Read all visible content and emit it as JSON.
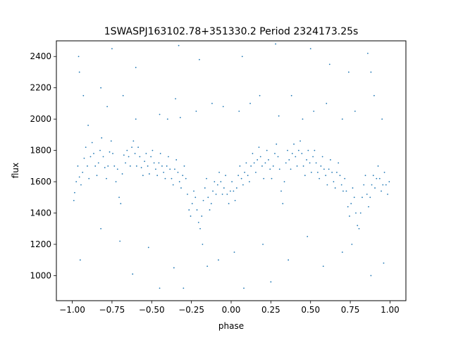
{
  "chart_data": {
    "type": "scatter",
    "title": "1SWASPJ163102.78+351330.2 Period 2324173.25s",
    "xlabel": "phase",
    "ylabel": "flux",
    "xlim": [
      -1.1,
      1.1
    ],
    "ylim": [
      840,
      2500
    ],
    "xticks": [
      -1.0,
      -0.75,
      -0.5,
      -0.25,
      0.0,
      0.25,
      0.5,
      0.75,
      1.0
    ],
    "xtick_labels": [
      "−1.00",
      "−0.75",
      "−0.50",
      "−0.25",
      "0.00",
      "0.25",
      "0.50",
      "0.75",
      "1.00"
    ],
    "yticks": [
      1000,
      1200,
      1400,
      1600,
      1800,
      2000,
      2200,
      2400
    ],
    "ytick_labels": [
      "1000",
      "1200",
      "1400",
      "1600",
      "1800",
      "2000",
      "2200",
      "2400"
    ],
    "grid": false,
    "series": [
      {
        "color": "#1f77b4",
        "marker_size": 0.9,
        "points": [
          [
            -0.99,
            1480
          ],
          [
            -0.985,
            1530
          ],
          [
            -0.975,
            1600
          ],
          [
            -0.965,
            1700
          ],
          [
            -0.955,
            1630
          ],
          [
            -0.945,
            1580
          ],
          [
            -0.935,
            1660
          ],
          [
            -0.925,
            1750
          ],
          [
            -0.915,
            1820
          ],
          [
            -0.905,
            1700
          ],
          [
            -0.895,
            1620
          ],
          [
            -0.885,
            1760
          ],
          [
            -0.875,
            1850
          ],
          [
            -0.865,
            1780
          ],
          [
            -0.855,
            1700
          ],
          [
            -0.845,
            1640
          ],
          [
            -0.835,
            1720
          ],
          [
            -0.825,
            1800
          ],
          [
            -0.815,
            1880
          ],
          [
            -0.805,
            1760
          ],
          [
            -0.795,
            1690
          ],
          [
            -0.785,
            1620
          ],
          [
            -0.775,
            1700
          ],
          [
            -0.765,
            1790
          ],
          [
            -0.755,
            1860
          ],
          [
            -0.745,
            1780
          ],
          [
            -0.735,
            1700
          ],
          [
            -0.725,
            1600
          ],
          [
            -0.715,
            1680
          ],
          [
            -0.705,
            1500
          ],
          [
            -0.695,
            1460
          ],
          [
            -0.685,
            1650
          ],
          [
            -0.675,
            1770
          ],
          [
            -0.665,
            1720
          ],
          [
            -0.655,
            1800
          ],
          [
            -0.645,
            1760
          ],
          [
            -0.635,
            1700
          ],
          [
            -0.625,
            1820
          ],
          [
            -0.615,
            1860
          ],
          [
            -0.605,
            1780
          ],
          [
            -0.595,
            1700
          ],
          [
            -0.585,
            1820
          ],
          [
            -0.575,
            1760
          ],
          [
            -0.565,
            1690
          ],
          [
            -0.555,
            1640
          ],
          [
            -0.545,
            1730
          ],
          [
            -0.535,
            1780
          ],
          [
            -0.525,
            1700
          ],
          [
            -0.515,
            1650
          ],
          [
            -0.505,
            1760
          ],
          [
            -0.495,
            1800
          ],
          [
            -0.485,
            1720
          ],
          [
            -0.475,
            1680
          ],
          [
            -0.465,
            1640
          ],
          [
            -0.455,
            1720
          ],
          [
            -0.445,
            1780
          ],
          [
            -0.435,
            1700
          ],
          [
            -0.425,
            1660
          ],
          [
            -0.415,
            1620
          ],
          [
            -0.405,
            1700
          ],
          [
            -0.395,
            1760
          ],
          [
            -0.385,
            1680
          ],
          [
            -0.375,
            1620
          ],
          [
            -0.365,
            1580
          ],
          [
            -0.355,
            1680
          ],
          [
            -0.345,
            1740
          ],
          [
            -0.335,
            1660
          ],
          [
            -0.325,
            1600
          ],
          [
            -0.315,
            1560
          ],
          [
            -0.305,
            1640
          ],
          [
            -0.295,
            1700
          ],
          [
            -0.285,
            1620
          ],
          [
            -0.275,
            1520
          ],
          [
            -0.265,
            1420
          ],
          [
            -0.255,
            1380
          ],
          [
            -0.245,
            1460
          ],
          [
            -0.235,
            1540
          ],
          [
            -0.225,
            1500
          ],
          [
            -0.215,
            1420
          ],
          [
            -0.205,
            1340
          ],
          [
            -0.195,
            1300
          ],
          [
            -0.185,
            1380
          ],
          [
            -0.175,
            1480
          ],
          [
            -0.165,
            1560
          ],
          [
            -0.155,
            1620
          ],
          [
            -0.145,
            1500
          ],
          [
            -0.135,
            1420
          ],
          [
            -0.125,
            1460
          ],
          [
            -0.115,
            1540
          ],
          [
            -0.105,
            1600
          ],
          [
            -0.095,
            1520
          ],
          [
            -0.085,
            1580
          ],
          [
            -0.075,
            1660
          ],
          [
            -0.065,
            1600
          ],
          [
            -0.055,
            1520
          ],
          [
            -0.045,
            1560
          ],
          [
            -0.035,
            1640
          ],
          [
            -0.025,
            1520
          ],
          [
            -0.015,
            1460
          ],
          [
            -0.005,
            1540
          ],
          [
            0.005,
            1600
          ],
          [
            0.015,
            1540
          ],
          [
            0.025,
            1480
          ],
          [
            0.035,
            1560
          ],
          [
            0.045,
            1640
          ],
          [
            0.055,
            1700
          ],
          [
            0.065,
            1620
          ],
          [
            0.075,
            1580
          ],
          [
            0.085,
            1660
          ],
          [
            0.095,
            1720
          ],
          [
            0.105,
            1640
          ],
          [
            0.115,
            1600
          ],
          [
            0.125,
            1700
          ],
          [
            0.135,
            1780
          ],
          [
            0.145,
            1720
          ],
          [
            0.155,
            1660
          ],
          [
            0.165,
            1740
          ],
          [
            0.175,
            1820
          ],
          [
            0.185,
            1760
          ],
          [
            0.195,
            1700
          ],
          [
            0.205,
            1620
          ],
          [
            0.215,
            1720
          ],
          [
            0.225,
            1800
          ],
          [
            0.235,
            1740
          ],
          [
            0.245,
            1680
          ],
          [
            0.255,
            1620
          ],
          [
            0.265,
            1700
          ],
          [
            0.275,
            1780
          ],
          [
            0.285,
            1840
          ],
          [
            0.295,
            1760
          ],
          [
            0.305,
            1680
          ],
          [
            0.315,
            1540
          ],
          [
            0.325,
            1460
          ],
          [
            0.335,
            1600
          ],
          [
            0.345,
            1720
          ],
          [
            0.355,
            1800
          ],
          [
            0.365,
            1740
          ],
          [
            0.375,
            1680
          ],
          [
            0.385,
            1780
          ],
          [
            0.395,
            1840
          ],
          [
            0.405,
            1760
          ],
          [
            0.415,
            1700
          ],
          [
            0.425,
            1800
          ],
          [
            0.435,
            1860
          ],
          [
            0.445,
            1780
          ],
          [
            0.455,
            1700
          ],
          [
            0.465,
            1640
          ],
          [
            0.475,
            1740
          ],
          [
            0.485,
            1800
          ],
          [
            0.495,
            1720
          ],
          [
            0.505,
            1660
          ],
          [
            0.515,
            1760
          ],
          [
            0.525,
            1800
          ],
          [
            0.535,
            1720
          ],
          [
            0.545,
            1660
          ],
          [
            0.555,
            1620
          ],
          [
            0.565,
            1700
          ],
          [
            0.575,
            1760
          ],
          [
            0.585,
            1680
          ],
          [
            0.595,
            1640
          ],
          [
            0.605,
            1580
          ],
          [
            0.615,
            1680
          ],
          [
            0.625,
            1740
          ],
          [
            0.635,
            1660
          ],
          [
            0.645,
            1600
          ],
          [
            0.655,
            1560
          ],
          [
            0.665,
            1660
          ],
          [
            0.675,
            1720
          ],
          [
            0.685,
            1640
          ],
          [
            0.695,
            1580
          ],
          [
            0.705,
            1540
          ],
          [
            0.715,
            1620
          ],
          [
            0.725,
            1540
          ],
          [
            0.735,
            1440
          ],
          [
            0.745,
            1380
          ],
          [
            0.755,
            1460
          ],
          [
            0.765,
            1560
          ],
          [
            0.775,
            1500
          ],
          [
            0.785,
            1400
          ],
          [
            0.795,
            1320
          ],
          [
            0.805,
            1300
          ],
          [
            0.815,
            1400
          ],
          [
            0.825,
            1500
          ],
          [
            0.835,
            1580
          ],
          [
            0.845,
            1640
          ],
          [
            0.855,
            1520
          ],
          [
            0.865,
            1440
          ],
          [
            0.875,
            1500
          ],
          [
            0.885,
            1580
          ],
          [
            0.895,
            1640
          ],
          [
            0.905,
            1560
          ],
          [
            0.915,
            1620
          ],
          [
            0.925,
            1700
          ],
          [
            0.935,
            1620
          ],
          [
            0.945,
            1540
          ],
          [
            0.955,
            1580
          ],
          [
            0.965,
            1660
          ],
          [
            0.975,
            1580
          ],
          [
            0.985,
            1520
          ],
          [
            0.995,
            1600
          ],
          [
            -0.96,
            2400
          ],
          [
            -0.955,
            2300
          ],
          [
            -0.93,
            2150
          ],
          [
            -0.9,
            1960
          ],
          [
            -0.82,
            2200
          ],
          [
            -0.78,
            2080
          ],
          [
            -0.68,
            2150
          ],
          [
            -0.6,
            2000
          ],
          [
            -0.45,
            2030
          ],
          [
            -0.4,
            2000
          ],
          [
            -0.35,
            2130
          ],
          [
            -0.32,
            2010
          ],
          [
            -0.22,
            2050
          ],
          [
            -0.12,
            2100
          ],
          [
            -0.05,
            2080
          ],
          [
            0.05,
            2050
          ],
          [
            0.12,
            2100
          ],
          [
            0.18,
            2150
          ],
          [
            0.3,
            2020
          ],
          [
            0.38,
            2150
          ],
          [
            0.45,
            2000
          ],
          [
            0.52,
            2050
          ],
          [
            0.6,
            2100
          ],
          [
            0.7,
            2000
          ],
          [
            0.78,
            2050
          ],
          [
            0.86,
            2420
          ],
          [
            0.88,
            2300
          ],
          [
            0.9,
            2150
          ],
          [
            0.95,
            2000
          ],
          [
            -0.75,
            2450
          ],
          [
            -0.2,
            2380
          ],
          [
            0.07,
            2400
          ],
          [
            0.28,
            2480
          ],
          [
            0.62,
            2350
          ],
          [
            0.74,
            2300
          ],
          [
            -0.6,
            2330
          ],
          [
            -0.33,
            2470
          ],
          [
            0.5,
            2450
          ],
          [
            -0.95,
            1100
          ],
          [
            -0.82,
            1300
          ],
          [
            -0.7,
            1220
          ],
          [
            -0.52,
            1180
          ],
          [
            -0.36,
            1050
          ],
          [
            -0.18,
            1200
          ],
          [
            -0.08,
            1100
          ],
          [
            0.02,
            1150
          ],
          [
            0.08,
            920
          ],
          [
            0.2,
            1200
          ],
          [
            0.36,
            1100
          ],
          [
            0.48,
            1250
          ],
          [
            0.58,
            1060
          ],
          [
            0.7,
            1150
          ],
          [
            0.76,
            1200
          ],
          [
            0.88,
            1000
          ],
          [
            0.96,
            1080
          ],
          [
            -0.45,
            920
          ],
          [
            -0.3,
            920
          ],
          [
            0.25,
            960
          ],
          [
            -0.62,
            1010
          ],
          [
            -0.15,
            1060
          ]
        ]
      }
    ]
  }
}
